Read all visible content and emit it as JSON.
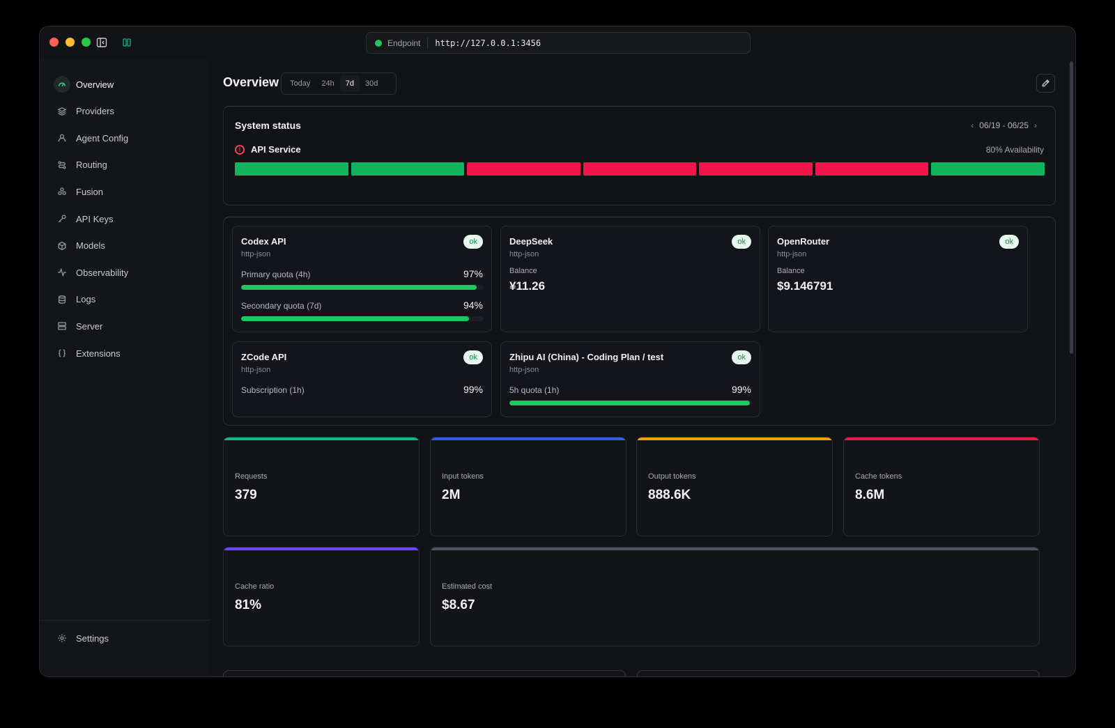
{
  "endpoint": {
    "label": "Endpoint",
    "url": "http://127.0.0.1:3456"
  },
  "sidebar": {
    "items": [
      {
        "label": "Overview",
        "icon": "gauge-icon",
        "active": true
      },
      {
        "label": "Providers",
        "icon": "layers-icon"
      },
      {
        "label": "Agent Config",
        "icon": "user-icon"
      },
      {
        "label": "Routing",
        "icon": "route-icon"
      },
      {
        "label": "Fusion",
        "icon": "fusion-icon"
      },
      {
        "label": "API Keys",
        "icon": "key-icon"
      },
      {
        "label": "Models",
        "icon": "box-icon"
      },
      {
        "label": "Observability",
        "icon": "activity-icon"
      },
      {
        "label": "Logs",
        "icon": "database-icon"
      },
      {
        "label": "Server",
        "icon": "server-icon"
      },
      {
        "label": "Extensions",
        "icon": "braces-icon"
      }
    ],
    "settings_label": "Settings"
  },
  "header": {
    "title": "Overview",
    "ranges": [
      "Today",
      "24h",
      "7d",
      "30d"
    ],
    "active_range": "7d"
  },
  "system_status": {
    "title": "System status",
    "date_range": "06/19 - 06/25",
    "service_name": "API Service",
    "availability": "80% Availability",
    "days": [
      "up",
      "up",
      "down",
      "down",
      "down",
      "down",
      "up"
    ],
    "colors": {
      "up": "#10b45c",
      "down": "#f0154a"
    }
  },
  "providers": [
    {
      "name": "Codex API",
      "type": "http-json",
      "status": "ok",
      "quotas": [
        {
          "label": "Primary quota (4h)",
          "value": "97%",
          "fill": 97
        },
        {
          "label": "Secondary quota (7d)",
          "value": "94%",
          "fill": 94
        }
      ]
    },
    {
      "name": "DeepSeek",
      "type": "http-json",
      "status": "ok",
      "balance_label": "Balance",
      "balance": "¥11.26"
    },
    {
      "name": "OpenRouter",
      "type": "http-json",
      "status": "ok",
      "balance_label": "Balance",
      "balance": "$9.146791"
    },
    {
      "name": "ZCode API",
      "type": "http-json",
      "status": "ok",
      "quotas": [
        {
          "label": "Subscription (1h)",
          "value": "99%"
        }
      ]
    },
    {
      "name": "Zhipu AI (China) - Coding Plan / test",
      "type": "http-json",
      "status": "ok",
      "quotas": [
        {
          "label": "5h quota (1h)",
          "value": "99%",
          "fill": 99
        }
      ]
    }
  ],
  "stats": [
    {
      "label": "Requests",
      "value": "379",
      "accent": "#10b981"
    },
    {
      "label": "Input tokens",
      "value": "2M",
      "accent": "#2563eb"
    },
    {
      "label": "Output tokens",
      "value": "888.6K",
      "accent": "#f59e0b"
    },
    {
      "label": "Cache tokens",
      "value": "8.6M",
      "accent": "#e11d48"
    },
    {
      "label": "Cache ratio",
      "value": "81%",
      "accent": "#6d4aff"
    },
    {
      "label": "Estimated cost",
      "value": "$8.67",
      "accent": "#4b5563"
    }
  ]
}
